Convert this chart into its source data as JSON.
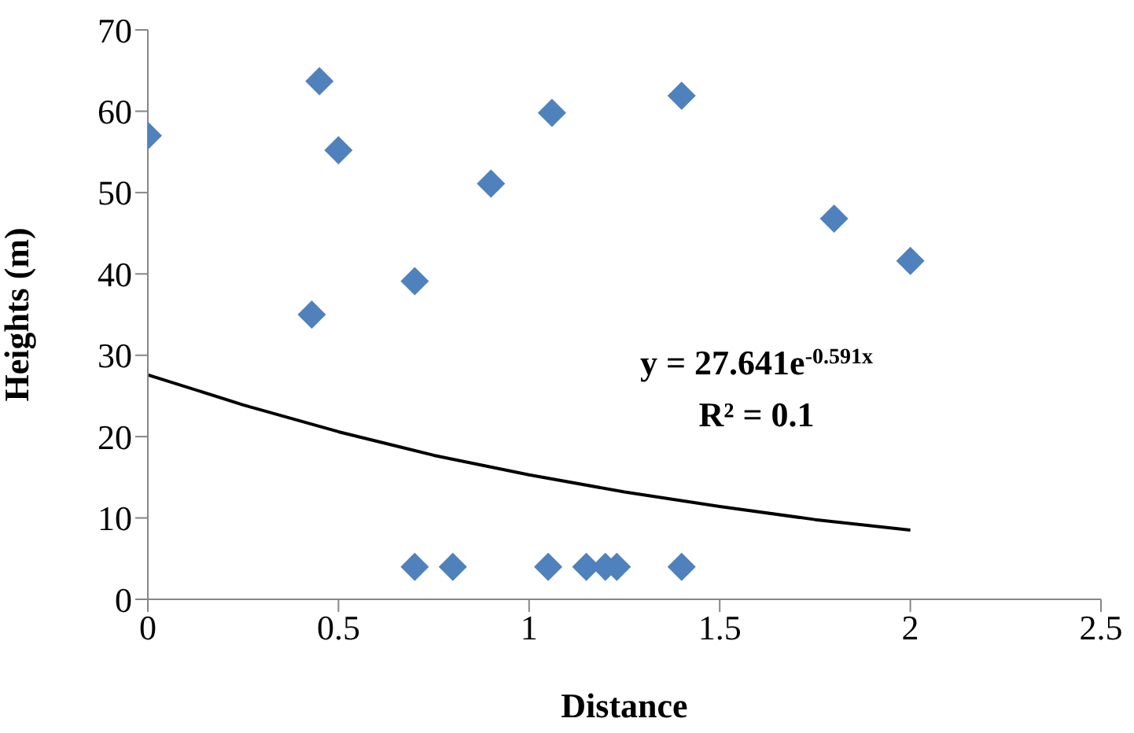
{
  "chart_data": {
    "type": "scatter",
    "xlabel": "Distance",
    "ylabel": "Heights (m)",
    "xlim": [
      0,
      2.5
    ],
    "xticks": [
      0,
      0.5,
      1,
      1.5,
      2,
      2.5
    ],
    "ylim": [
      0,
      70
    ],
    "yticks": [
      0,
      10,
      20,
      30,
      40,
      50,
      60,
      70
    ],
    "grid": false,
    "series": [
      {
        "marker": "diamond",
        "color": "#4f81bd",
        "x": [
          0,
          0.45,
          0.5,
          0.9,
          0.43,
          0.7,
          1.06,
          1.4,
          1.8,
          2.0,
          0.7,
          0.8,
          1.05,
          1.15,
          1.2,
          1.23,
          1.4
        ],
        "values": [
          57,
          63.7,
          55.2,
          51.1,
          35,
          39.1,
          59.8,
          61.9,
          46.8,
          41.6,
          4,
          4,
          4,
          4,
          4,
          4,
          4
        ]
      },
      {
        "type": "line",
        "marker": "none",
        "color": "#000000",
        "x": [
          0,
          0.25,
          0.5,
          0.75,
          1,
          1.25,
          1.5,
          1.75,
          2
        ],
        "values": [
          27.6,
          23.9,
          20.6,
          17.7,
          15.3,
          13.2,
          11.4,
          9.8,
          8.5
        ]
      }
    ],
    "annotations": [
      "y = 27.641e$^{-0.591x}$",
      "R² = 0.1"
    ]
  }
}
